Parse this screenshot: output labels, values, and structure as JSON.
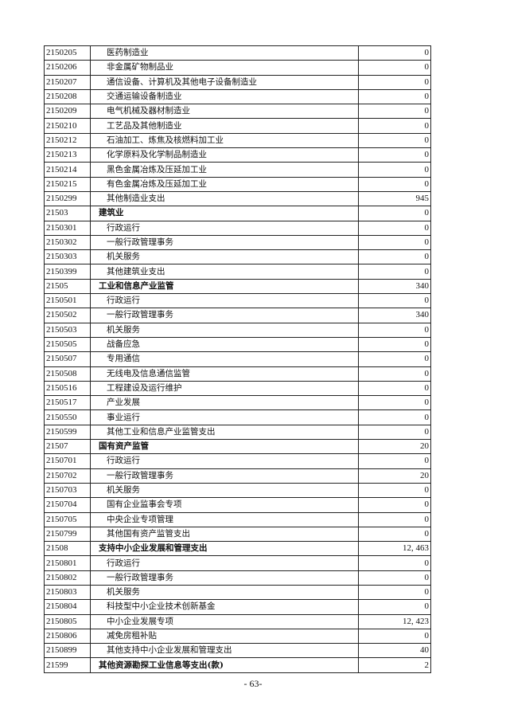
{
  "rows": [
    {
      "code": "2150205",
      "name": "医药制造业",
      "value": "0",
      "bold": false
    },
    {
      "code": "2150206",
      "name": "非金属矿物制品业",
      "value": "0",
      "bold": false
    },
    {
      "code": "2150207",
      "name": "通信设备、计算机及其他电子设备制造业",
      "value": "0",
      "bold": false
    },
    {
      "code": "2150208",
      "name": "交通运输设备制造业",
      "value": "0",
      "bold": false
    },
    {
      "code": "2150209",
      "name": "电气机械及器材制造业",
      "value": "0",
      "bold": false
    },
    {
      "code": "2150210",
      "name": "工艺品及其他制造业",
      "value": "0",
      "bold": false
    },
    {
      "code": "2150212",
      "name": "石油加工、炼焦及核燃料加工业",
      "value": "0",
      "bold": false
    },
    {
      "code": "2150213",
      "name": "化学原料及化学制品制造业",
      "value": "0",
      "bold": false
    },
    {
      "code": "2150214",
      "name": "黑色金属冶炼及压延加工业",
      "value": "0",
      "bold": false
    },
    {
      "code": "2150215",
      "name": "有色金属冶炼及压延加工业",
      "value": "0",
      "bold": false
    },
    {
      "code": "2150299",
      "name": "其他制造业支出",
      "value": "945",
      "bold": false
    },
    {
      "code": "21503",
      "name": "建筑业",
      "value": "0",
      "bold": true
    },
    {
      "code": "2150301",
      "name": "行政运行",
      "value": "0",
      "bold": false
    },
    {
      "code": "2150302",
      "name": "一般行政管理事务",
      "value": "0",
      "bold": false
    },
    {
      "code": "2150303",
      "name": "机关服务",
      "value": "0",
      "bold": false
    },
    {
      "code": "2150399",
      "name": "其他建筑业支出",
      "value": "0",
      "bold": false
    },
    {
      "code": "21505",
      "name": "工业和信息产业监管",
      "value": "340",
      "bold": true
    },
    {
      "code": "2150501",
      "name": "行政运行",
      "value": "0",
      "bold": false
    },
    {
      "code": "2150502",
      "name": "一般行政管理事务",
      "value": "340",
      "bold": false
    },
    {
      "code": "2150503",
      "name": "机关服务",
      "value": "0",
      "bold": false
    },
    {
      "code": "2150505",
      "name": "战备应急",
      "value": "0",
      "bold": false
    },
    {
      "code": "2150507",
      "name": "专用通信",
      "value": "0",
      "bold": false
    },
    {
      "code": "2150508",
      "name": "无线电及信息通信监管",
      "value": "0",
      "bold": false
    },
    {
      "code": "2150516",
      "name": "工程建设及运行维护",
      "value": "0",
      "bold": false
    },
    {
      "code": "2150517",
      "name": "产业发展",
      "value": "0",
      "bold": false
    },
    {
      "code": "2150550",
      "name": "事业运行",
      "value": "0",
      "bold": false
    },
    {
      "code": "2150599",
      "name": "其他工业和信息产业监管支出",
      "value": "0",
      "bold": false
    },
    {
      "code": "21507",
      "name": "国有资产监管",
      "value": "20",
      "bold": true
    },
    {
      "code": "2150701",
      "name": "行政运行",
      "value": "0",
      "bold": false
    },
    {
      "code": "2150702",
      "name": "一般行政管理事务",
      "value": "20",
      "bold": false
    },
    {
      "code": "2150703",
      "name": "机关服务",
      "value": "0",
      "bold": false
    },
    {
      "code": "2150704",
      "name": "国有企业监事会专项",
      "value": "0",
      "bold": false
    },
    {
      "code": "2150705",
      "name": "中央企业专项管理",
      "value": "0",
      "bold": false
    },
    {
      "code": "2150799",
      "name": "其他国有资产监管支出",
      "value": "0",
      "bold": false
    },
    {
      "code": "21508",
      "name": "支持中小企业发展和管理支出",
      "value": "12, 463",
      "bold": true
    },
    {
      "code": "2150801",
      "name": "行政运行",
      "value": "0",
      "bold": false
    },
    {
      "code": "2150802",
      "name": "一般行政管理事务",
      "value": "0",
      "bold": false
    },
    {
      "code": "2150803",
      "name": "机关服务",
      "value": "0",
      "bold": false
    },
    {
      "code": "2150804",
      "name": "科技型中小企业技术创新基金",
      "value": "0",
      "bold": false
    },
    {
      "code": "2150805",
      "name": "中小企业发展专项",
      "value": "12, 423",
      "bold": false
    },
    {
      "code": "2150806",
      "name": "减免房租补贴",
      "value": "0",
      "bold": false
    },
    {
      "code": "2150899",
      "name": "其他支持中小企业发展和管理支出",
      "value": "40",
      "bold": false
    },
    {
      "code": "21599",
      "name": "其他资源勘探工业信息等支出(款)",
      "value": "2",
      "bold": true
    }
  ],
  "page_number": "- 63-"
}
